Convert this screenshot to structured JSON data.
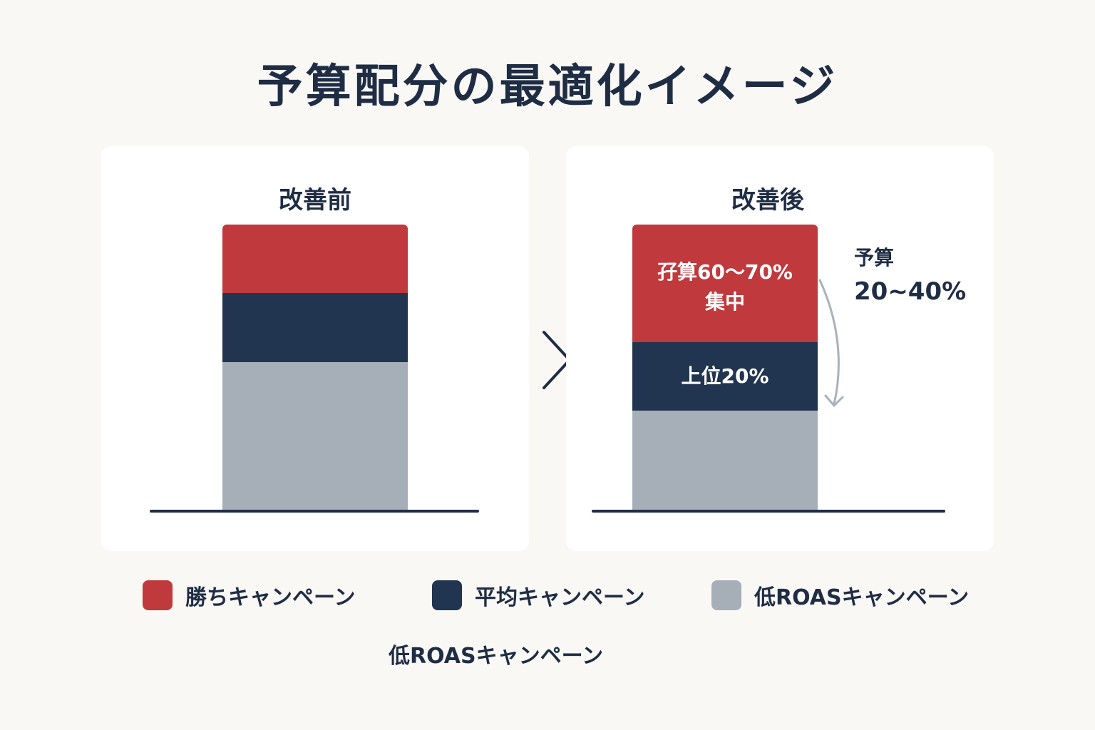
{
  "title": "予算配分の最適化イメージ",
  "colors": {
    "winning": "#c0393d",
    "average": "#213450",
    "low": "#a6aeb8",
    "text": "#1f2d44"
  },
  "chart_data": {
    "type": "bar",
    "stacked": true,
    "categories": [
      "改善前",
      "改善後"
    ],
    "series": [
      {
        "name": "低ROASキャンペーン",
        "values": [
          52,
          35
        ]
      },
      {
        "name": "平均キャンペーン",
        "values": [
          24,
          24
        ]
      },
      {
        "name": "勝ちキャンペーン",
        "values": [
          24,
          41
        ]
      }
    ],
    "segment_labels": {
      "after_winning": [
        "孖算60～70%",
        "集中"
      ],
      "after_average": "上位20%"
    },
    "annotation": {
      "line1": "予算",
      "line2": "20~40%"
    },
    "legend_position": "bottom"
  },
  "legend": [
    {
      "label": "勝ちキャンペーン",
      "color": "#c0393d"
    },
    {
      "label": "平均キャンペーン",
      "color": "#213450"
    },
    {
      "label": "低ROASキャンペーン",
      "color": "#a6aeb8"
    }
  ],
  "footnote": "低ROASキャンペーン"
}
